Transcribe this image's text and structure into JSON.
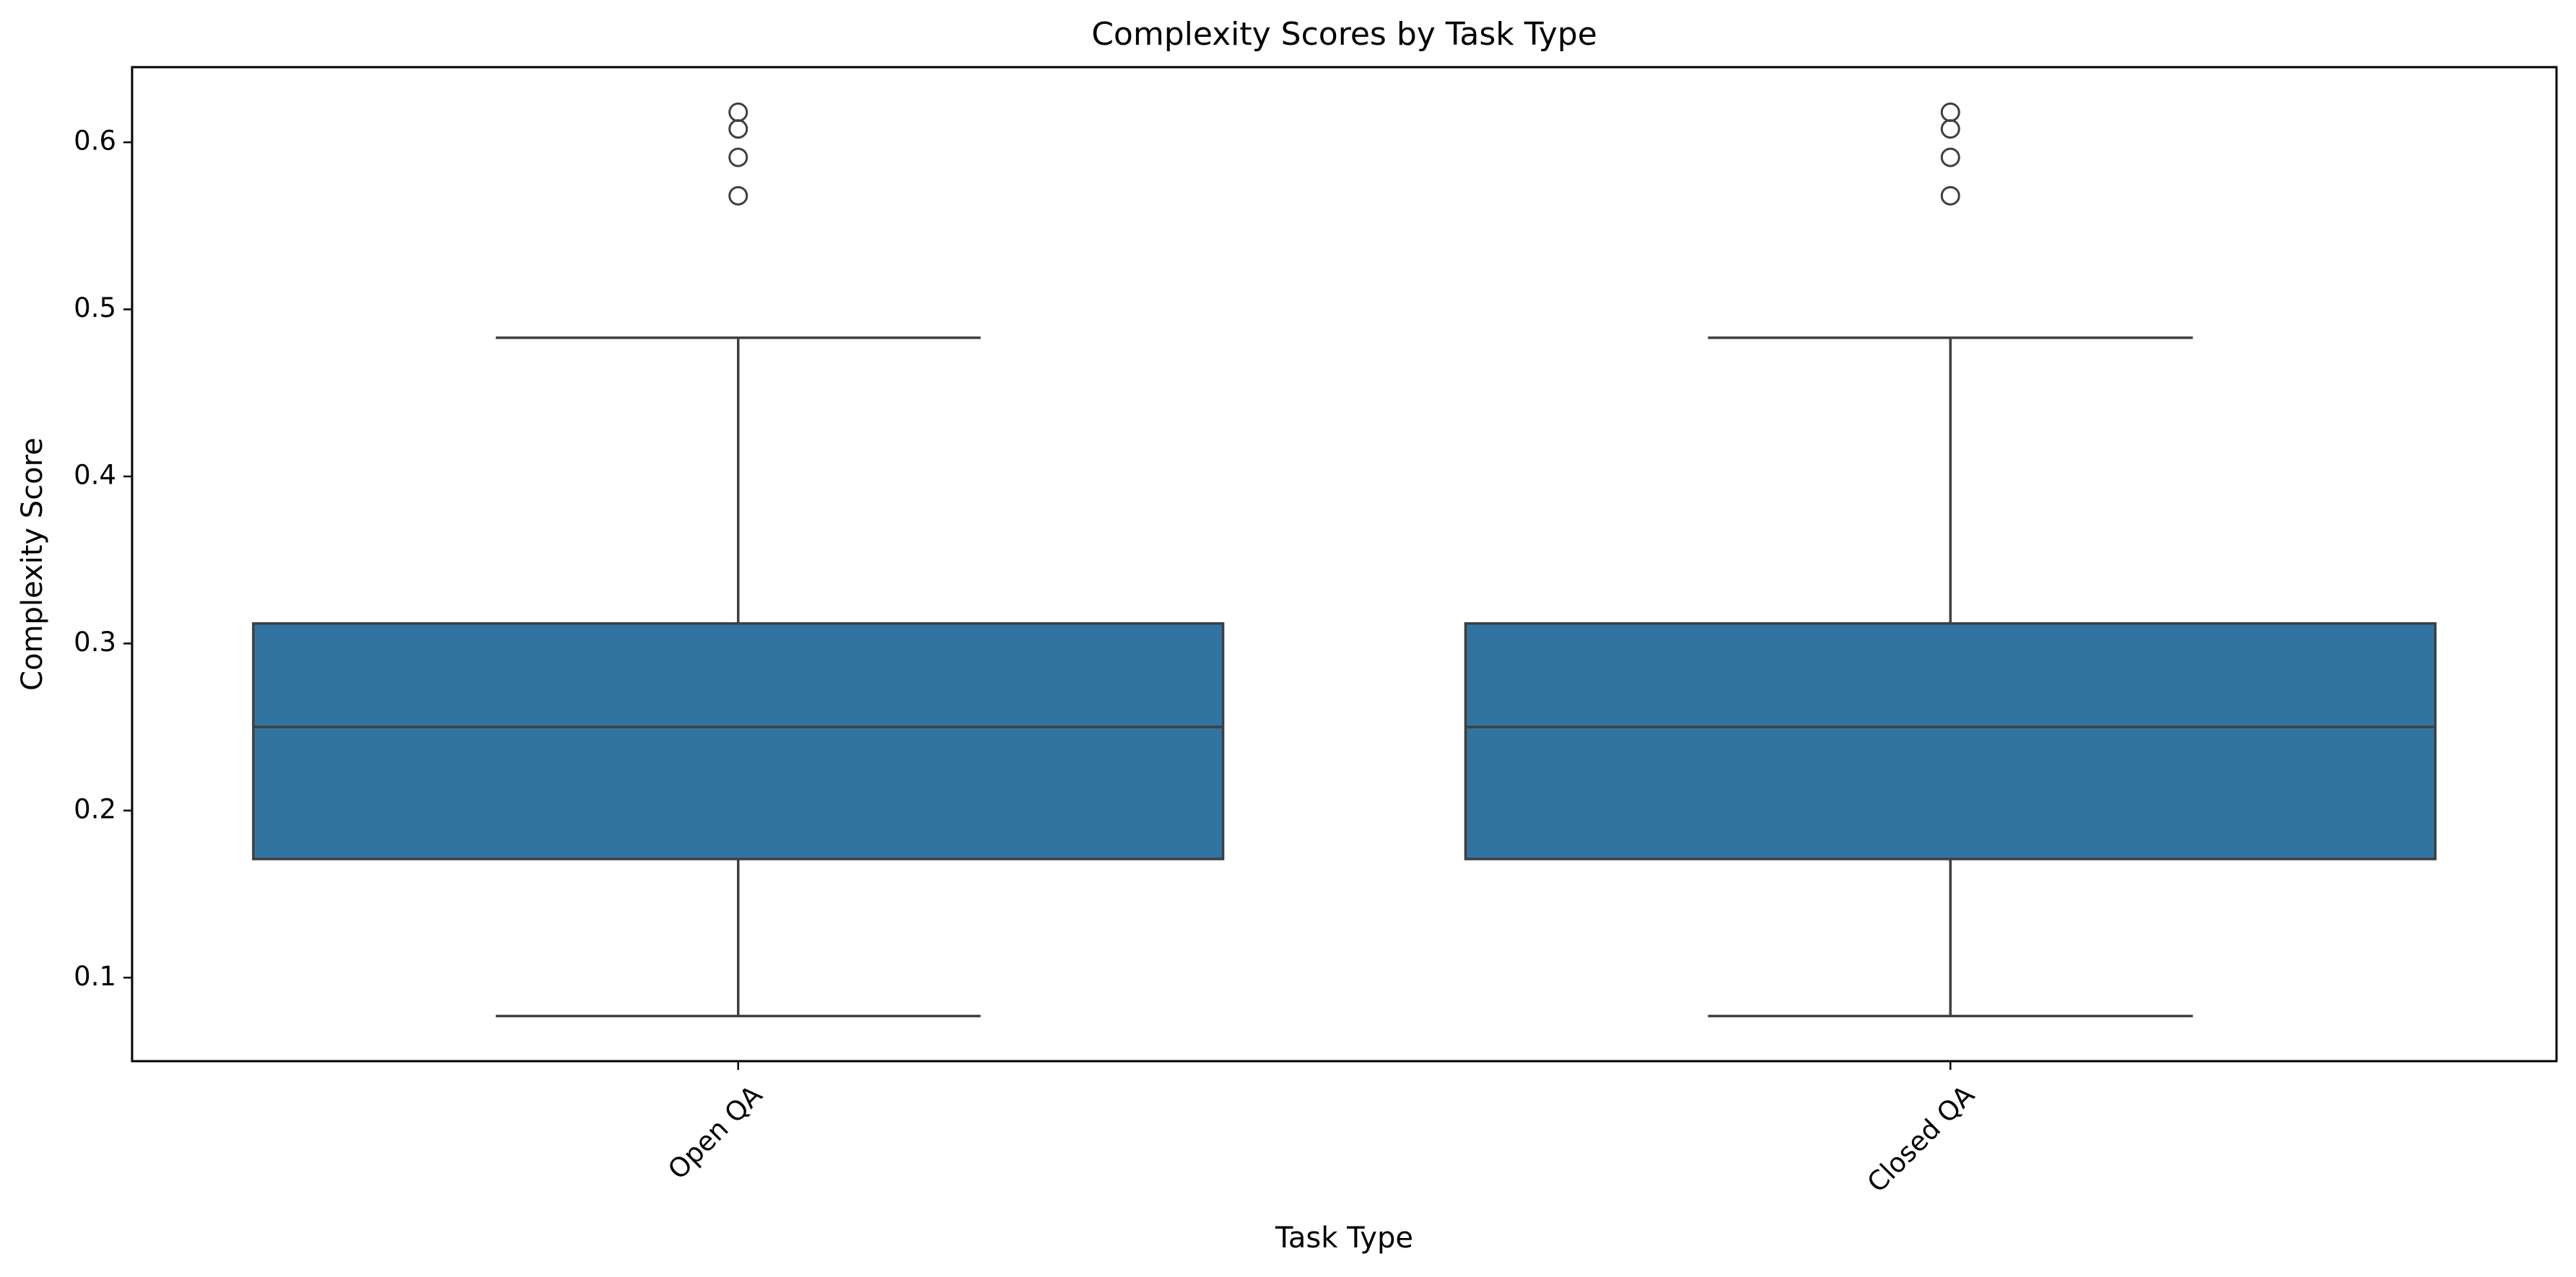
{
  "chart_data": {
    "type": "box",
    "title": "Complexity Scores by Task Type",
    "xlabel": "Task Type",
    "ylabel": "Complexity Score",
    "ylim": [
      0.05,
      0.645
    ],
    "yticks": [
      0.1,
      0.2,
      0.3,
      0.4,
      0.5,
      0.6
    ],
    "ytick_labels": [
      "0.1",
      "0.2",
      "0.3",
      "0.4",
      "0.5",
      "0.6"
    ],
    "categories": [
      "Open QA",
      "Closed QA"
    ],
    "x_tick_rotation": -45,
    "grid": false,
    "box_color": "#3274a1",
    "line_color": "#3f3f3f",
    "boxes": [
      {
        "label": "Open QA",
        "whisker_low": 0.077,
        "q1": 0.171,
        "median": 0.25,
        "q3": 0.312,
        "whisker_high": 0.483,
        "outliers": [
          0.568,
          0.591,
          0.608,
          0.618
        ]
      },
      {
        "label": "Closed QA",
        "whisker_low": 0.077,
        "q1": 0.171,
        "median": 0.25,
        "q3": 0.312,
        "whisker_high": 0.483,
        "outliers": [
          0.568,
          0.591,
          0.608,
          0.618
        ]
      }
    ]
  }
}
